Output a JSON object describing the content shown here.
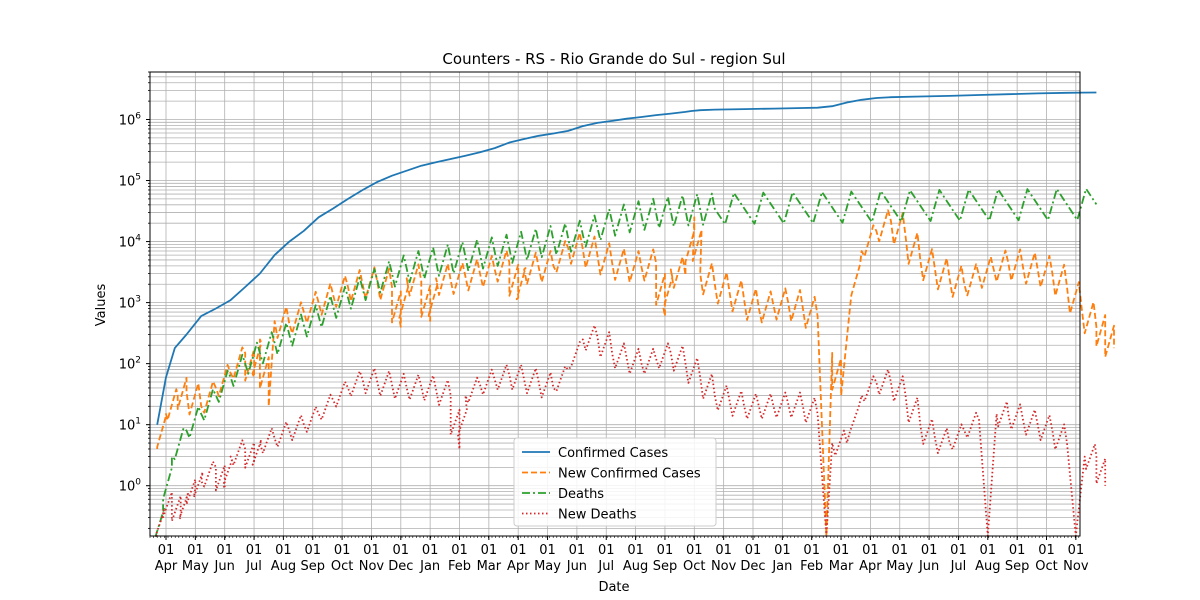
{
  "chart_data": {
    "type": "line",
    "title": "Counters - RS - Rio Grande do Sul - region Sul",
    "xlabel": "Date",
    "ylabel": "Values",
    "yscale": "log",
    "ylim": [
      0.15,
      6000000
    ],
    "y_ticks": [
      {
        "value": 1,
        "label": "10",
        "exp": "0"
      },
      {
        "value": 10,
        "label": "10",
        "exp": "1"
      },
      {
        "value": 100,
        "label": "10",
        "exp": "2"
      },
      {
        "value": 1000,
        "label": "10",
        "exp": "3"
      },
      {
        "value": 10000,
        "label": "10",
        "exp": "4"
      },
      {
        "value": 100000,
        "label": "10",
        "exp": "5"
      },
      {
        "value": 1000000,
        "label": "10",
        "exp": "6"
      }
    ],
    "x_ticks": [
      {
        "day": "01",
        "month": "Apr"
      },
      {
        "day": "01",
        "month": "May"
      },
      {
        "day": "01",
        "month": "Jun"
      },
      {
        "day": "01",
        "month": "Jul"
      },
      {
        "day": "01",
        "month": "Aug"
      },
      {
        "day": "01",
        "month": "Sep"
      },
      {
        "day": "01",
        "month": "Oct"
      },
      {
        "day": "01",
        "month": "Nov"
      },
      {
        "day": "01",
        "month": "Dec"
      },
      {
        "day": "01",
        "month": "Jan"
      },
      {
        "day": "01",
        "month": "Feb"
      },
      {
        "day": "01",
        "month": "Mar"
      },
      {
        "day": "01",
        "month": "Apr"
      },
      {
        "day": "01",
        "month": "May"
      },
      {
        "day": "01",
        "month": "Jun"
      },
      {
        "day": "01",
        "month": "Jul"
      },
      {
        "day": "01",
        "month": "Aug"
      },
      {
        "day": "01",
        "month": "Sep"
      },
      {
        "day": "01",
        "month": "Oct"
      },
      {
        "day": "01",
        "month": "Nov"
      },
      {
        "day": "01",
        "month": "Dec"
      },
      {
        "day": "01",
        "month": "Jan"
      },
      {
        "day": "01",
        "month": "Feb"
      },
      {
        "day": "01",
        "month": "Mar"
      },
      {
        "day": "01",
        "month": "Apr"
      },
      {
        "day": "01",
        "month": "May"
      },
      {
        "day": "01",
        "month": "Jun"
      },
      {
        "day": "01",
        "month": "Jul"
      },
      {
        "day": "01",
        "month": "Aug"
      },
      {
        "day": "01",
        "month": "Sep"
      },
      {
        "day": "01",
        "month": "Oct"
      },
      {
        "day": "01",
        "month": "Nov"
      }
    ],
    "grid": true,
    "legend_position": "bottom-center",
    "series": [
      {
        "name": "Confirmed Cases",
        "color": "#1f77b4",
        "style": "solid",
        "points": [
          [
            0.0,
            10
          ],
          [
            0.3,
            60
          ],
          [
            0.6,
            180
          ],
          [
            1.0,
            300
          ],
          [
            1.5,
            600
          ],
          [
            2.0,
            800
          ],
          [
            2.5,
            1100
          ],
          [
            3.0,
            1800
          ],
          [
            3.5,
            3000
          ],
          [
            4.0,
            6000
          ],
          [
            4.5,
            10000
          ],
          [
            5.0,
            15000
          ],
          [
            5.5,
            25000
          ],
          [
            6.0,
            35000
          ],
          [
            6.5,
            50000
          ],
          [
            7.0,
            70000
          ],
          [
            7.5,
            95000
          ],
          [
            8.0,
            120000
          ],
          [
            8.5,
            145000
          ],
          [
            9.0,
            175000
          ],
          [
            9.5,
            200000
          ],
          [
            10.0,
            225000
          ],
          [
            10.5,
            255000
          ],
          [
            11.0,
            290000
          ],
          [
            11.5,
            340000
          ],
          [
            12.0,
            420000
          ],
          [
            12.5,
            480000
          ],
          [
            13.0,
            540000
          ],
          [
            13.5,
            590000
          ],
          [
            14.0,
            650000
          ],
          [
            14.5,
            780000
          ],
          [
            15.0,
            880000
          ],
          [
            15.5,
            950000
          ],
          [
            16.0,
            1030000
          ],
          [
            16.5,
            1100000
          ],
          [
            17.0,
            1180000
          ],
          [
            17.5,
            1250000
          ],
          [
            18.0,
            1330000
          ],
          [
            18.2,
            1380000
          ],
          [
            18.5,
            1420000
          ],
          [
            19.0,
            1450000
          ],
          [
            20.0,
            1480000
          ],
          [
            21.0,
            1510000
          ],
          [
            22.0,
            1540000
          ],
          [
            22.5,
            1560000
          ],
          [
            23.0,
            1650000
          ],
          [
            23.5,
            1900000
          ],
          [
            24.0,
            2100000
          ],
          [
            24.5,
            2250000
          ],
          [
            25.0,
            2320000
          ],
          [
            26.0,
            2380000
          ],
          [
            27.0,
            2440000
          ],
          [
            28.0,
            2520000
          ],
          [
            29.0,
            2600000
          ],
          [
            30.0,
            2680000
          ],
          [
            31.0,
            2740000
          ],
          [
            31.5,
            2760000
          ],
          [
            32.0,
            2770000
          ]
        ]
      },
      {
        "name": "New Confirmed Cases",
        "color": "#ff7f0e",
        "style": "dashed",
        "points": [
          [
            0.0,
            4
          ],
          [
            0.3,
            15
          ],
          [
            0.7,
            30
          ],
          [
            1.0,
            35
          ],
          [
            1.5,
            20
          ],
          [
            2.0,
            40
          ],
          [
            2.5,
            70
          ],
          [
            3.0,
            150
          ],
          [
            3.3,
            60
          ],
          [
            3.5,
            250
          ],
          [
            3.8,
            20
          ],
          [
            4.0,
            500
          ],
          [
            4.5,
            450
          ],
          [
            5.0,
            700
          ],
          [
            5.5,
            1000
          ],
          [
            6.0,
            1300
          ],
          [
            6.5,
            1800
          ],
          [
            7.0,
            2000
          ],
          [
            7.5,
            2200
          ],
          [
            8.0,
            1800
          ],
          [
            8.3,
            400
          ],
          [
            8.5,
            2500
          ],
          [
            9.0,
            2200
          ],
          [
            9.3,
            500
          ],
          [
            9.5,
            2500
          ],
          [
            10.0,
            2300
          ],
          [
            10.5,
            2700
          ],
          [
            11.0,
            3000
          ],
          [
            11.5,
            3500
          ],
          [
            12.0,
            4500
          ],
          [
            12.3,
            1200
          ],
          [
            12.5,
            3500
          ],
          [
            13.0,
            3800
          ],
          [
            13.5,
            4000
          ],
          [
            14.0,
            8000
          ],
          [
            14.5,
            7500
          ],
          [
            15.0,
            6000
          ],
          [
            15.5,
            4500
          ],
          [
            16.0,
            4000
          ],
          [
            16.5,
            3800
          ],
          [
            17.0,
            4500
          ],
          [
            17.3,
            600
          ],
          [
            17.5,
            3500
          ],
          [
            18.0,
            2800
          ],
          [
            18.3,
            25000
          ],
          [
            18.5,
            3000
          ],
          [
            19.0,
            2000
          ],
          [
            19.5,
            1500
          ],
          [
            20.0,
            1100
          ],
          [
            20.5,
            800
          ],
          [
            21.0,
            900
          ],
          [
            21.5,
            1000
          ],
          [
            22.0,
            800
          ],
          [
            22.5,
            600
          ],
          [
            22.8,
            0.15
          ],
          [
            23.0,
            150
          ],
          [
            23.3,
            30
          ],
          [
            23.6,
            800
          ],
          [
            24.0,
            7000
          ],
          [
            24.5,
            15000
          ],
          [
            25.0,
            22000
          ],
          [
            25.5,
            12000
          ],
          [
            26.0,
            5000
          ],
          [
            26.5,
            3500
          ],
          [
            27.0,
            2500
          ],
          [
            27.5,
            2000
          ],
          [
            28.0,
            2800
          ],
          [
            28.5,
            3500
          ],
          [
            29.0,
            4500
          ],
          [
            29.5,
            3800
          ],
          [
            30.0,
            3500
          ],
          [
            30.5,
            3000
          ],
          [
            31.0,
            1800
          ],
          [
            31.5,
            800
          ],
          [
            32.0,
            400
          ],
          [
            32.3,
            300
          ],
          [
            32.6,
            180
          ]
        ]
      },
      {
        "name": "Deaths",
        "color": "#2ca02c",
        "style": "dashdot",
        "points": [
          [
            0.0,
            0.15
          ],
          [
            0.2,
            0.4
          ],
          [
            0.5,
            3
          ],
          [
            1.0,
            8
          ],
          [
            1.5,
            15
          ],
          [
            2.0,
            30
          ],
          [
            2.5,
            60
          ],
          [
            3.0,
            100
          ],
          [
            3.5,
            150
          ],
          [
            4.0,
            220
          ],
          [
            4.5,
            300
          ],
          [
            5.0,
            420
          ],
          [
            5.5,
            600
          ],
          [
            6.0,
            850
          ],
          [
            6.5,
            1200
          ],
          [
            7.0,
            1700
          ],
          [
            7.5,
            2300
          ],
          [
            8.0,
            3000
          ],
          [
            8.5,
            3600
          ],
          [
            9.0,
            4200
          ],
          [
            9.5,
            4700
          ],
          [
            10.0,
            5200
          ],
          [
            10.5,
            5700
          ],
          [
            11.0,
            6200
          ],
          [
            11.5,
            6800
          ],
          [
            12.0,
            7600
          ],
          [
            12.5,
            8500
          ],
          [
            13.0,
            9500
          ],
          [
            13.5,
            10500
          ],
          [
            14.0,
            11500
          ],
          [
            14.5,
            13000
          ],
          [
            15.0,
            17000
          ],
          [
            15.5,
            21000
          ],
          [
            16.0,
            24000
          ],
          [
            16.5,
            27000
          ],
          [
            17.0,
            29000
          ],
          [
            17.5,
            31000
          ],
          [
            18.0,
            32500
          ],
          [
            18.5,
            33500
          ],
          [
            19.0,
            34300
          ],
          [
            20.0,
            35000
          ],
          [
            21.0,
            35500
          ],
          [
            22.0,
            35900
          ],
          [
            23.0,
            36300
          ],
          [
            24.0,
            37000
          ],
          [
            25.0,
            38000
          ],
          [
            26.0,
            38800
          ],
          [
            27.0,
            39300
          ],
          [
            28.0,
            39700
          ],
          [
            29.0,
            40000
          ],
          [
            30.0,
            40300
          ],
          [
            31.0,
            40500
          ],
          [
            32.0,
            40700
          ]
        ]
      },
      {
        "name": "New Deaths",
        "color": "#d62728",
        "style": "dotted",
        "points": [
          [
            0.0,
            0.15
          ],
          [
            0.2,
            0.4
          ],
          [
            0.5,
            0.6
          ],
          [
            0.8,
            0.3
          ],
          [
            1.0,
            0.7
          ],
          [
            1.3,
            0.9
          ],
          [
            1.5,
            1.2
          ],
          [
            2.0,
            2
          ],
          [
            2.3,
            0.9
          ],
          [
            2.5,
            3
          ],
          [
            3.0,
            4
          ],
          [
            3.3,
            2.5
          ],
          [
            3.5,
            5
          ],
          [
            4.0,
            6
          ],
          [
            4.5,
            8
          ],
          [
            5.0,
            10
          ],
          [
            5.5,
            15
          ],
          [
            6.0,
            25
          ],
          [
            6.5,
            40
          ],
          [
            7.0,
            55
          ],
          [
            7.5,
            50
          ],
          [
            8.0,
            45
          ],
          [
            8.5,
            40
          ],
          [
            9.0,
            42
          ],
          [
            9.5,
            38
          ],
          [
            10.0,
            30
          ],
          [
            10.3,
            4
          ],
          [
            10.5,
            30
          ],
          [
            11.0,
            45
          ],
          [
            11.5,
            55
          ],
          [
            12.0,
            65
          ],
          [
            12.5,
            55
          ],
          [
            13.0,
            50
          ],
          [
            13.5,
            40
          ],
          [
            14.0,
            80
          ],
          [
            14.5,
            250
          ],
          [
            15.0,
            280
          ],
          [
            15.5,
            150
          ],
          [
            16.0,
            120
          ],
          [
            16.5,
            100
          ],
          [
            17.0,
            120
          ],
          [
            17.5,
            150
          ],
          [
            18.0,
            100
          ],
          [
            18.5,
            60
          ],
          [
            19.0,
            30
          ],
          [
            19.5,
            25
          ],
          [
            20.0,
            20
          ],
          [
            20.5,
            20
          ],
          [
            21.0,
            20
          ],
          [
            21.5,
            22
          ],
          [
            22.0,
            20
          ],
          [
            22.5,
            15
          ],
          [
            22.8,
            0.15
          ],
          [
            23.0,
            5
          ],
          [
            23.5,
            5
          ],
          [
            24.0,
            30
          ],
          [
            24.5,
            50
          ],
          [
            25.0,
            50
          ],
          [
            25.5,
            30
          ],
          [
            26.0,
            10
          ],
          [
            26.5,
            6
          ],
          [
            27.0,
            5
          ],
          [
            27.5,
            8
          ],
          [
            28.0,
            12
          ],
          [
            28.3,
            0.15
          ],
          [
            28.6,
            15
          ],
          [
            29.0,
            15
          ],
          [
            29.5,
            12
          ],
          [
            30.0,
            10
          ],
          [
            30.5,
            8
          ],
          [
            31.0,
            5
          ],
          [
            31.3,
            0.15
          ],
          [
            31.6,
            3
          ],
          [
            32.0,
            3
          ],
          [
            32.3,
            1
          ]
        ]
      }
    ]
  }
}
